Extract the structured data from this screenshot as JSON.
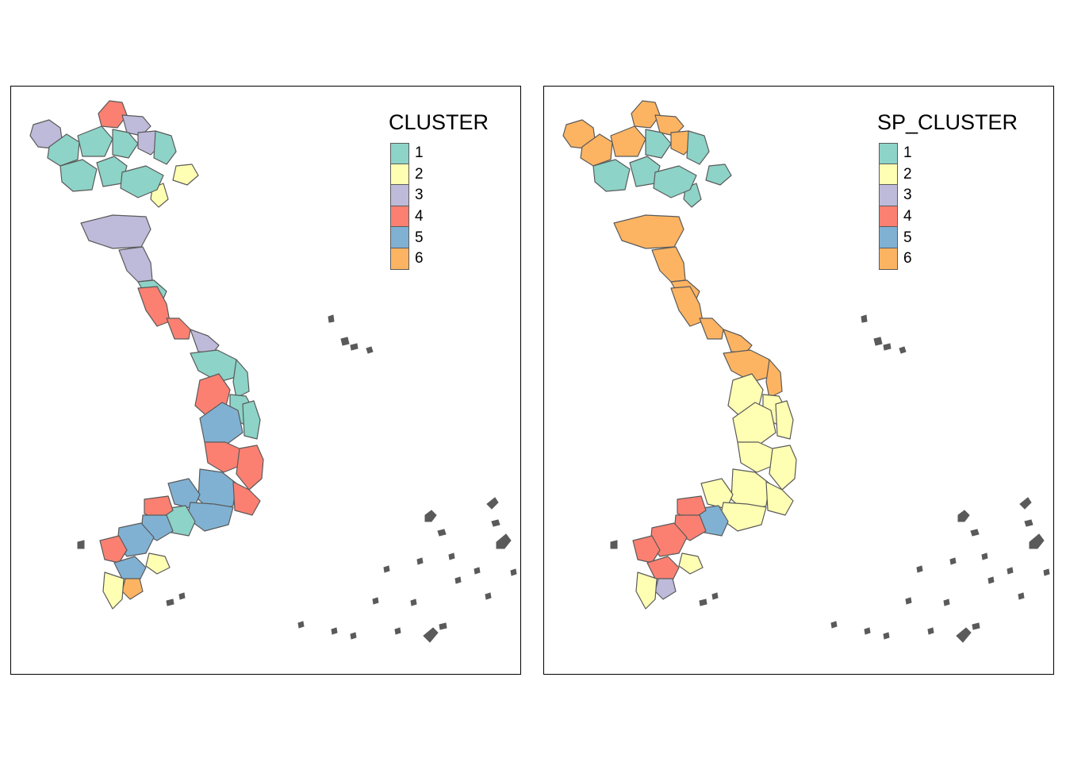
{
  "palette": {
    "1": "#8dd3c7",
    "2": "#ffffb3",
    "3": "#bebada",
    "4": "#fb8072",
    "5": "#80b1d3",
    "6": "#fdb462"
  },
  "border_color": "#5a5a5a",
  "maps": [
    {
      "legend_title": "CLUSTER",
      "legend_items": [
        "1",
        "2",
        "3",
        "4",
        "5",
        "6"
      ],
      "region_clusters": [
        "3",
        "4",
        "3",
        "1",
        "1",
        "1",
        "3",
        "1",
        "1",
        "1",
        "2",
        "2",
        "1",
        "3",
        "3",
        "1",
        "4",
        "4",
        "3",
        "1",
        "1",
        "4",
        "1",
        "5",
        "1",
        "4",
        "4",
        "5",
        "4",
        "5",
        "5",
        "1",
        "4",
        "5",
        "5",
        "4",
        "5",
        "2",
        "6",
        "2"
      ]
    },
    {
      "legend_title": "SP_CLUSTER",
      "legend_items": [
        "1",
        "2",
        "3",
        "4",
        "5",
        "6"
      ],
      "region_clusters": [
        "6",
        "6",
        "6",
        "6",
        "6",
        "1",
        "6",
        "1",
        "1",
        "1",
        "1",
        "1",
        "1",
        "6",
        "6",
        "6",
        "6",
        "6",
        "6",
        "6",
        "6",
        "2",
        "2",
        "2",
        "2",
        "2",
        "2",
        "2",
        "2",
        "2",
        "2",
        "5",
        "4",
        "4",
        "4",
        "4",
        "4",
        "2",
        "3",
        "2"
      ]
    }
  ]
}
